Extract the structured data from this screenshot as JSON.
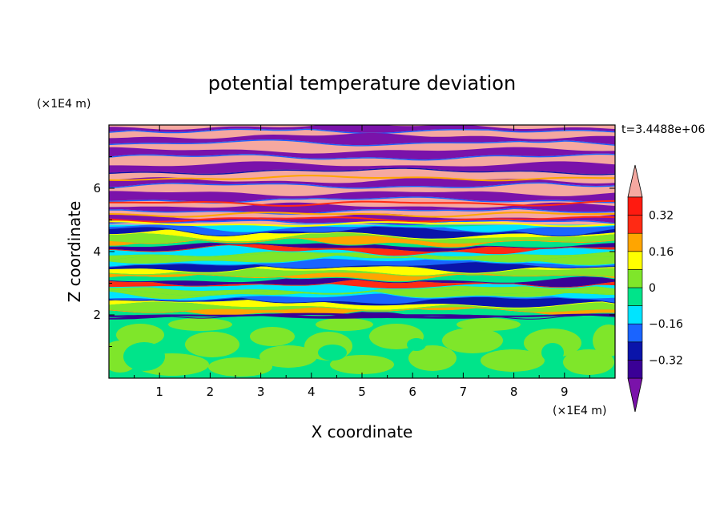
{
  "chart_data": {
    "type": "heatmap",
    "title": "potential temperature deviation",
    "xlabel": "X coordinate",
    "ylabel": "Z coordinate",
    "x_unit": "(×1E4 m)",
    "y_unit": "(×1E4 m)",
    "time_label": "t=3.4488e+06",
    "xlim": [
      0,
      10
    ],
    "ylim": [
      0,
      8
    ],
    "x_ticks": [
      "1",
      "2",
      "3",
      "4",
      "5",
      "6",
      "7",
      "8",
      "9"
    ],
    "y_ticks": [
      "2",
      "4",
      "6"
    ],
    "colorbar": {
      "levels": [
        -0.4,
        -0.32,
        -0.24,
        -0.16,
        -0.08,
        0,
        0.08,
        0.16,
        0.24,
        0.32,
        0.4
      ],
      "colors": [
        "#7a12aa",
        "#3a0096",
        "#0a14aa",
        "#1a64ff",
        "#00e4ff",
        "#00e48a",
        "#7fe62a",
        "#ffff00",
        "#ffa500",
        "#ff2a14",
        "#ff1a10",
        "#f5a8a0"
      ],
      "labels": [
        "0.32",
        "0.16",
        "0",
        "−0.16",
        "−0.32"
      ],
      "label_values": [
        0.32,
        0.16,
        0,
        -0.16,
        -0.32
      ],
      "extend": "both"
    },
    "layers": [
      {
        "z_range": [
          0,
          2
        ],
        "description_values": [
          0,
          0.08
        ],
        "colors": [
          "#00e48a",
          "#7fe62a"
        ]
      },
      {
        "z_range": [
          2,
          4.8
        ],
        "mixed": true
      },
      {
        "z_range": [
          4.8,
          8
        ],
        "alternating": [
          "#f5a8a0",
          "#7a12aa"
        ]
      }
    ]
  }
}
